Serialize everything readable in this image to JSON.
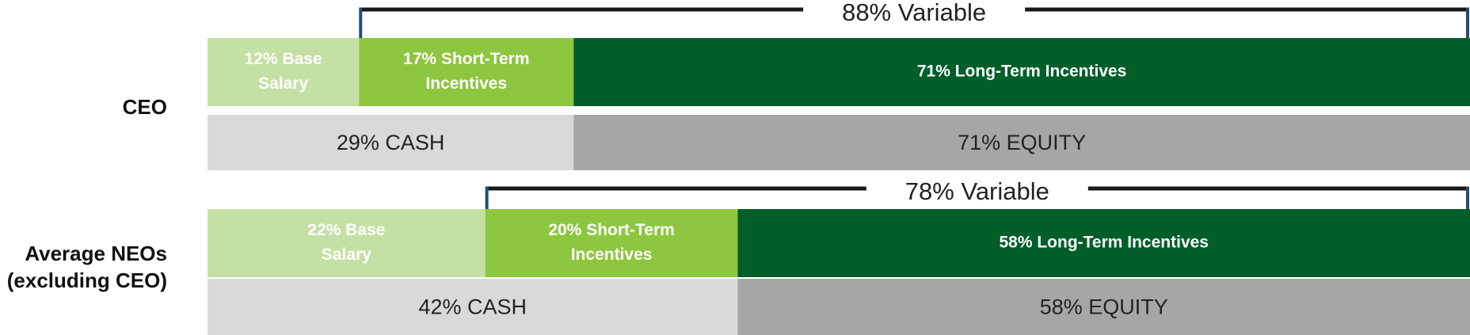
{
  "chart_data": {
    "type": "bar",
    "orientation": "horizontal",
    "stacked": true,
    "xlim": [
      0,
      100
    ],
    "unit": "%",
    "legend": "none",
    "grid": false,
    "rows": [
      {
        "label": "CEO",
        "label_lines": [
          "CEO"
        ],
        "pay_elements": [
          {
            "label": "12% Base Salary",
            "lines": [
              "12% Base",
              "Salary"
            ],
            "value": 12,
            "color": "#c5e0a5"
          },
          {
            "label": "17% Short-Term Incentives",
            "lines": [
              "17% Short-Term",
              "Incentives"
            ],
            "value": 17,
            "color": "#8dc63f"
          },
          {
            "label": "71% Long-Term Incentives",
            "lines": [
              "71% Long-Term Incentives"
            ],
            "value": 71,
            "color": "#005e2b"
          }
        ],
        "pay_forms": [
          {
            "label": "29% CASH",
            "value": 29,
            "color": "#d9d9d9"
          },
          {
            "label": "71% EQUITY",
            "value": 71,
            "color": "#a6a6a6"
          }
        ],
        "variable": {
          "label": "88% Variable",
          "value": 88,
          "start": 12,
          "end": 100
        }
      },
      {
        "label": "Average NEOs (excluding CEO)",
        "label_lines": [
          "Average NEOs",
          "(excluding CEO)"
        ],
        "pay_elements": [
          {
            "label": "22% Base Salary",
            "lines": [
              "22% Base",
              "Salary"
            ],
            "value": 22,
            "color": "#c5e0a5"
          },
          {
            "label": "20% Short-Term Incentives",
            "lines": [
              "20% Short-Term",
              "Incentives"
            ],
            "value": 20,
            "color": "#8dc63f"
          },
          {
            "label": "58% Long-Term Incentives",
            "lines": [
              "58% Long-Term Incentives"
            ],
            "value": 58,
            "color": "#005e2b"
          }
        ],
        "pay_forms": [
          {
            "label": "42% CASH",
            "value": 42,
            "color": "#d9d9d9"
          },
          {
            "label": "58% EQUITY",
            "value": 58,
            "color": "#a6a6a6"
          }
        ],
        "variable": {
          "label": "78% Variable",
          "value": 78,
          "start": 22,
          "end": 100
        }
      }
    ],
    "colors": {
      "bracket": "#1a1a1a",
      "bracket_tick": "#1f4e79",
      "element_text": "#ffffff",
      "form_text": "#222222"
    }
  }
}
